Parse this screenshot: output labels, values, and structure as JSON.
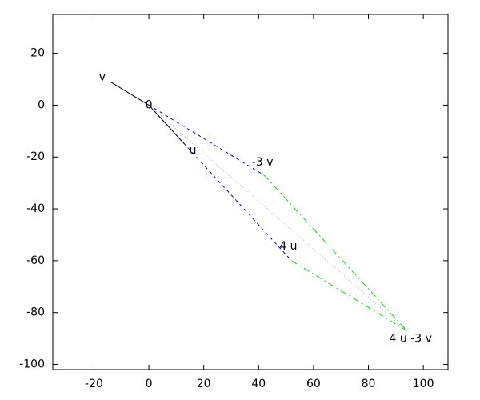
{
  "chart_data": {
    "type": "vector",
    "points": [
      {
        "label": "0",
        "x": 0,
        "y": 0
      },
      {
        "label": "u",
        "x": 13,
        "y": -15
      },
      {
        "label": "v",
        "x": -14,
        "y": 9
      },
      {
        "label": "4 u",
        "x": 52,
        "y": -60
      },
      {
        "label": "-3 v",
        "x": 42,
        "y": -27
      },
      {
        "label": "4 u -3 v",
        "x": 94,
        "y": -87
      }
    ],
    "xlim": [
      -35,
      109
    ],
    "ylim": [
      -102,
      35
    ],
    "xticks": [
      -20,
      0,
      20,
      40,
      60,
      80,
      100
    ],
    "yticks": [
      -100,
      -80,
      -60,
      -40,
      -20,
      0,
      20
    ]
  }
}
